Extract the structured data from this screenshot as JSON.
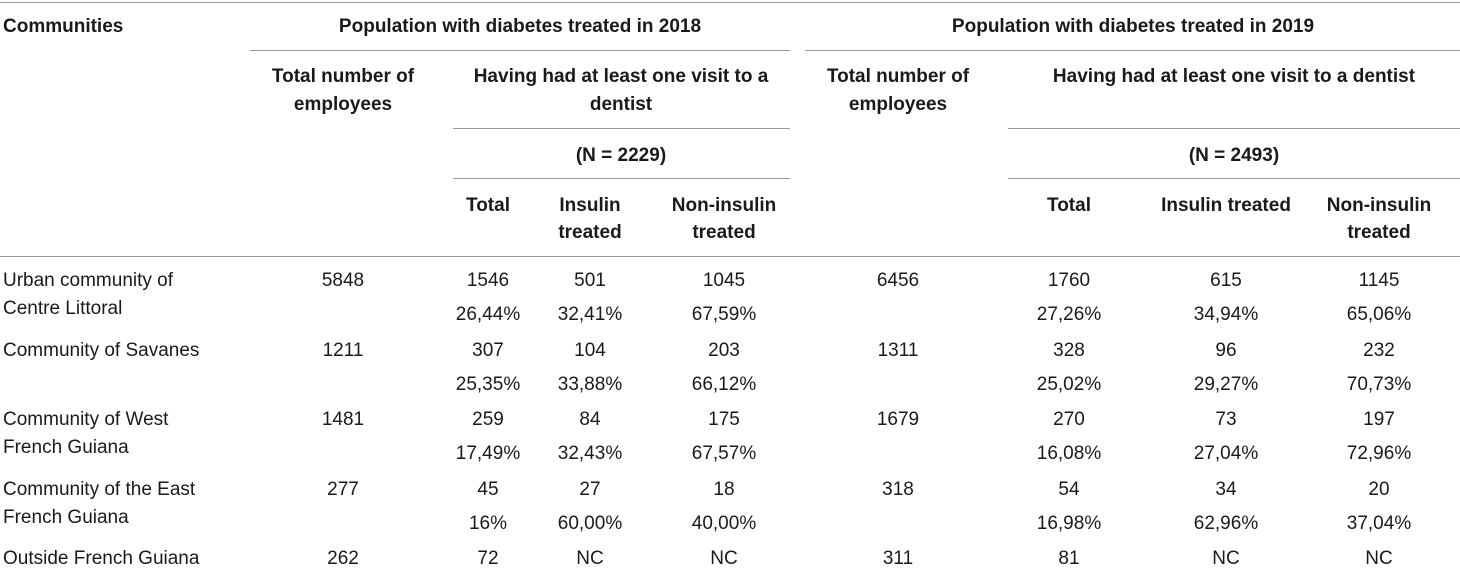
{
  "header": {
    "communities": "Communities",
    "pop_2018": "Population with diabetes treated in 2018",
    "pop_2019": "Population with diabetes treated in 2019",
    "total_employees_line1": "Total number of",
    "total_employees_line2": "employees",
    "visit_2018_line1": "Having had at least one visit to a",
    "visit_2018_line2": "dentist",
    "visit_2019": "Having had at least one visit to a dentist",
    "n_2018": "(N = 2229)",
    "n_2019": "(N = 2493)",
    "total": "Total",
    "insulin_line1": "Insulin",
    "insulin_line2": "treated",
    "insulin_full": "Insulin treated",
    "noninsulin_line1": "Non-insulin",
    "noninsulin_line2": "treated"
  },
  "rows": [
    {
      "name_line1": "Urban community of",
      "name_line2": "Centre Littoral",
      "emp_2018": "5848",
      "total_2018": "1546",
      "total_2018_pct": "26,44%",
      "ins_2018": "501",
      "ins_2018_pct": "32,41%",
      "non_2018": "1045",
      "non_2018_pct": "67,59%",
      "emp_2019": "6456",
      "total_2019": "1760",
      "total_2019_pct": "27,26%",
      "ins_2019": "615",
      "ins_2019_pct": "34,94%",
      "non_2019": "1145",
      "non_2019_pct": "65,06%"
    },
    {
      "name_line1": "Community of Savanes",
      "name_line2": "",
      "emp_2018": "1211",
      "total_2018": "307",
      "total_2018_pct": "25,35%",
      "ins_2018": "104",
      "ins_2018_pct": "33,88%",
      "non_2018": "203",
      "non_2018_pct": "66,12%",
      "emp_2019": "1311",
      "total_2019": "328",
      "total_2019_pct": "25,02%",
      "ins_2019": "96",
      "ins_2019_pct": "29,27%",
      "non_2019": "232",
      "non_2019_pct": "70,73%"
    },
    {
      "name_line1": "Community of West",
      "name_line2": "French Guiana",
      "emp_2018": "1481",
      "total_2018": "259",
      "total_2018_pct": "17,49%",
      "ins_2018": "84",
      "ins_2018_pct": "32,43%",
      "non_2018": "175",
      "non_2018_pct": "67,57%",
      "emp_2019": "1679",
      "total_2019": "270",
      "total_2019_pct": "16,08%",
      "ins_2019": "73",
      "ins_2019_pct": "27,04%",
      "non_2019": "197",
      "non_2019_pct": "72,96%"
    },
    {
      "name_line1": "Community of the East",
      "name_line2": "French Guiana",
      "emp_2018": "277",
      "total_2018": "45",
      "total_2018_pct": "16%",
      "ins_2018": "27",
      "ins_2018_pct": "60,00%",
      "non_2018": "18",
      "non_2018_pct": "40,00%",
      "emp_2019": "318",
      "total_2019": "54",
      "total_2019_pct": "16,98%",
      "ins_2019": "34",
      "ins_2019_pct": "62,96%",
      "non_2019": "20",
      "non_2019_pct": "37,04%"
    },
    {
      "name_line1": "Outside French Guiana",
      "name_line2": "",
      "emp_2018": "262",
      "total_2018": "72",
      "total_2018_pct": "",
      "ins_2018": "NC",
      "ins_2018_pct": "",
      "non_2018": "NC",
      "non_2018_pct": "",
      "emp_2019": "311",
      "total_2019": "81",
      "total_2019_pct": "",
      "ins_2019": "NC",
      "ins_2019_pct": "",
      "non_2019": "NC",
      "non_2019_pct": ""
    }
  ]
}
